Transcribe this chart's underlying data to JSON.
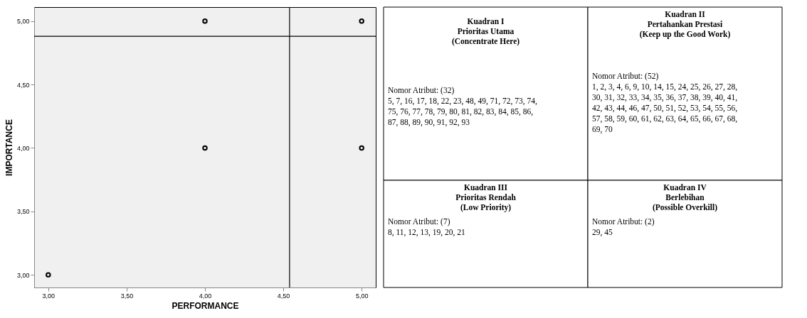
{
  "chart_data": [
    {
      "type": "scatter",
      "xlabel": "PERFORMANCE",
      "ylabel": "IMPORTANCE",
      "x": [
        3,
        4,
        4,
        5,
        5
      ],
      "series": [
        {
          "color": "#000000",
          "values": [
            3,
            4,
            5,
            4,
            5
          ]
        }
      ],
      "xlim": [
        2.91,
        5.09
      ],
      "ylim": [
        2.9,
        5.11
      ],
      "xticks": [
        {
          "value": 3,
          "label": "3,00"
        },
        {
          "value": 3.5,
          "label": "3,50"
        },
        {
          "value": 4,
          "label": "4,00"
        },
        {
          "value": 4.5,
          "label": "4,50"
        },
        {
          "value": 5,
          "label": "5,00"
        }
      ],
      "yticks": [
        {
          "value": 3,
          "label": "3,00"
        },
        {
          "value": 3.5,
          "label": "3,50"
        },
        {
          "value": 4,
          "label": "4,00"
        },
        {
          "value": 4.5,
          "label": "4,50"
        },
        {
          "value": 5,
          "label": "5,00"
        }
      ],
      "ref_lines": [
        {
          "axis": "x",
          "value": 4.54,
          "color": "#000000"
        },
        {
          "axis": "y",
          "value": 4.88,
          "color": "#000000"
        }
      ],
      "marker": "circle",
      "grid": false,
      "legend": false
    },
    {
      "type": "other",
      "annotations": [
        "Kuadran I\nPrioritas Utama\n(Concentrate Here)",
        "Nomor Atribut: (32)\n\n5, 7, 16, 17, 18, 22, 23, 48, 49, 71, 72, 73, 74,\n75, 76, 77, 78, 79, 80, 81, 82, 83, 84, 85, 86,\n87, 88, 89, 90, 91, 92, 93",
        "Kuadran II\nPertahankan Prestasi\n(Keep up the Good Work)",
        "Nomor Atribut: (52)\n\n1, 2, 3, 4, 6, 9, 10, 14, 15, 24, 25, 26, 27, 28,\n30, 31, 32, 33, 34, 35, 36, 37, 38, 39, 40, 41,\n42, 43, 44, 46, 47, 50, 51, 52, 53, 54, 55, 56,\n57, 58, 59, 60, 61, 62, 63, 64, 65, 66, 67, 68,\n69, 70",
        "Kuadran III\nPrioritas Rendah\n(Low Priority)",
        "Nomor Atribut: (7)\n\n8, 11, 12, 13, 19, 20, 21",
        "Kuadran IV\nBerlebihan\n(Possible Overkill)",
        "Nomor Atribut: (2)\n\n29, 45"
      ]
    }
  ]
}
